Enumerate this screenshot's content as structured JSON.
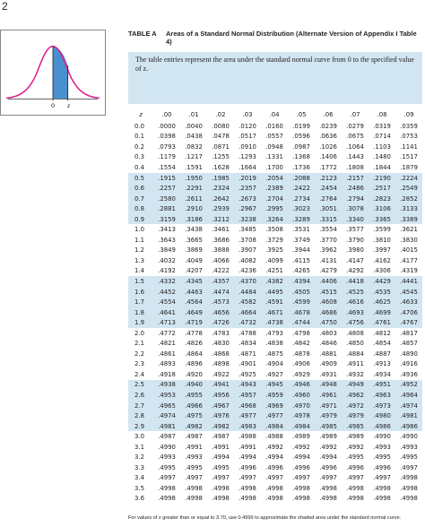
{
  "page_number": "2",
  "figure": {
    "labels": [
      "0",
      "z"
    ]
  },
  "table": {
    "label": "TABLE A",
    "title": "Areas of a Standard Normal Distribution (Alternate Version of Appendix I Table 4)",
    "intro": "The table entries represent the area under the standard normal curve from 0 to the specified value of z.",
    "columns": [
      "z",
      ".00",
      ".01",
      ".02",
      ".03",
      ".04",
      ".05",
      ".06",
      ".07",
      ".08",
      ".09"
    ],
    "rows": [
      [
        "0.0",
        ".0000",
        ".0040",
        ".0080",
        ".0120",
        ".0160",
        ".0199",
        ".0239",
        ".0279",
        ".0319",
        ".0359"
      ],
      [
        "0.1",
        ".0398",
        ".0438",
        ".0478",
        ".0517",
        ".0557",
        ".0596",
        ".0636",
        ".0675",
        ".0714",
        ".0753"
      ],
      [
        "0.2",
        ".0793",
        ".0832",
        ".0871",
        ".0910",
        ".0948",
        ".0987",
        ".1026",
        ".1064",
        ".1103",
        ".1141"
      ],
      [
        "0.3",
        ".1179",
        ".1217",
        ".1255",
        ".1293",
        ".1331",
        ".1368",
        ".1406",
        ".1443",
        ".1480",
        ".1517"
      ],
      [
        "0.4",
        ".1554",
        ".1591",
        ".1628",
        ".1664",
        ".1700",
        ".1736",
        ".1772",
        ".1808",
        ".1844",
        ".1879"
      ],
      [
        "0.5",
        ".1915",
        ".1950",
        ".1985",
        ".2019",
        ".2054",
        ".2088",
        ".2123",
        ".2157",
        ".2190",
        ".2224"
      ],
      [
        "0.6",
        ".2257",
        ".2291",
        ".2324",
        ".2357",
        ".2389",
        ".2422",
        ".2454",
        ".2486",
        ".2517",
        ".2549"
      ],
      [
        "0.7",
        ".2580",
        ".2611",
        ".2642",
        ".2673",
        ".2704",
        ".2734",
        ".2764",
        ".2794",
        ".2823",
        ".2852"
      ],
      [
        "0.8",
        ".2881",
        ".2910",
        ".2939",
        ".2967",
        ".2995",
        ".3023",
        ".3051",
        ".3078",
        ".3106",
        ".3133"
      ],
      [
        "0.9",
        ".3159",
        ".3186",
        ".3212",
        ".3238",
        ".3264",
        ".3289",
        ".3315",
        ".3340",
        ".3365",
        ".3389"
      ],
      [
        "1.0",
        ".3413",
        ".3438",
        ".3461",
        ".3485",
        ".3508",
        ".3531",
        ".3554",
        ".3577",
        ".3599",
        ".3621"
      ],
      [
        "1.1",
        ".3643",
        ".3665",
        ".3686",
        ".3708",
        ".3729",
        ".3749",
        ".3770",
        ".3790",
        ".3810",
        ".3830"
      ],
      [
        "1.2",
        ".3849",
        ".3869",
        ".3888",
        ".3907",
        ".3925",
        ".3944",
        ".3962",
        ".3980",
        ".3997",
        ".4015"
      ],
      [
        "1.3",
        ".4032",
        ".4049",
        ".4066",
        ".4082",
        ".4099",
        ".4115",
        ".4131",
        ".4147",
        ".4162",
        ".4177"
      ],
      [
        "1.4",
        ".4192",
        ".4207",
        ".4222",
        ".4236",
        ".4251",
        ".4265",
        ".4279",
        ".4292",
        ".4306",
        ".4319"
      ],
      [
        "1.5",
        ".4332",
        ".4345",
        ".4357",
        ".4370",
        ".4382",
        ".4394",
        ".4406",
        ".4418",
        ".4429",
        ".4441"
      ],
      [
        "1.6",
        ".4452",
        ".4463",
        ".4474",
        ".4484",
        ".4495",
        ".4505",
        ".4515",
        ".4525",
        ".4535",
        ".4545"
      ],
      [
        "1.7",
        ".4554",
        ".4564",
        ".4573",
        ".4582",
        ".4591",
        ".4599",
        ".4608",
        ".4616",
        ".4625",
        ".4633"
      ],
      [
        "1.8",
        ".4641",
        ".4649",
        ".4656",
        ".4664",
        ".4671",
        ".4678",
        ".4686",
        ".4693",
        ".4699",
        ".4706"
      ],
      [
        "1.9",
        ".4713",
        ".4719",
        ".4726",
        ".4732",
        ".4738",
        ".4744",
        ".4750",
        ".4756",
        ".4761",
        ".4767"
      ],
      [
        "2.0",
        ".4772",
        ".4778",
        ".4783",
        ".4788",
        ".4793",
        ".4798",
        ".4803",
        ".4808",
        ".4812",
        ".4817"
      ],
      [
        "2.1",
        ".4821",
        ".4826",
        ".4830",
        ".4834",
        ".4838",
        ".4842",
        ".4846",
        ".4850",
        ".4854",
        ".4857"
      ],
      [
        "2.2",
        ".4861",
        ".4864",
        ".4868",
        ".4871",
        ".4875",
        ".4878",
        ".4881",
        ".4884",
        ".4887",
        ".4890"
      ],
      [
        "2.3",
        ".4893",
        ".4896",
        ".4898",
        ".4901",
        ".4904",
        ".4906",
        ".4909",
        ".4911",
        ".4913",
        ".4916"
      ],
      [
        "2.4",
        ".4918",
        ".4920",
        ".4922",
        ".4925",
        ".4927",
        ".4929",
        ".4931",
        ".4932",
        ".4934",
        ".4936"
      ],
      [
        "2.5",
        ".4938",
        ".4940",
        ".4941",
        ".4943",
        ".4945",
        ".4946",
        ".4948",
        ".4949",
        ".4951",
        ".4952"
      ],
      [
        "2.6",
        ".4953",
        ".4955",
        ".4956",
        ".4957",
        ".4959",
        ".4960",
        ".4961",
        ".4962",
        ".4963",
        ".4964"
      ],
      [
        "2.7",
        ".4965",
        ".4966",
        ".4967",
        ".4968",
        ".4969",
        ".4970",
        ".4971",
        ".4972",
        ".4973",
        ".4974"
      ],
      [
        "2.8",
        ".4974",
        ".4975",
        ".4976",
        ".4977",
        ".4977",
        ".4978",
        ".4979",
        ".4979",
        ".4980",
        ".4981"
      ],
      [
        "2.9",
        ".4981",
        ".4982",
        ".4982",
        ".4983",
        ".4984",
        ".4984",
        ".4985",
        ".4985",
        ".4986",
        ".4986"
      ],
      [
        "3.0",
        ".4987",
        ".4987",
        ".4987",
        ".4988",
        ".4988",
        ".4989",
        ".4989",
        ".4989",
        ".4990",
        ".4990"
      ],
      [
        "3.1",
        ".4990",
        ".4991",
        ".4991",
        ".4991",
        ".4992",
        ".4992",
        ".4992",
        ".4992",
        ".4993",
        ".4993"
      ],
      [
        "3.2",
        ".4993",
        ".4993",
        ".4994",
        ".4994",
        ".4994",
        ".4994",
        ".4994",
        ".4995",
        ".4995",
        ".4995"
      ],
      [
        "3.3",
        ".4995",
        ".4995",
        ".4995",
        ".4996",
        ".4996",
        ".4996",
        ".4996",
        ".4996",
        ".4996",
        ".4997"
      ],
      [
        "3.4",
        ".4997",
        ".4997",
        ".4997",
        ".4997",
        ".4997",
        ".4997",
        ".4997",
        ".4997",
        ".4997",
        ".4998"
      ],
      [
        "3.5",
        ".4998",
        ".4998",
        ".4998",
        ".4998",
        ".4998",
        ".4998",
        ".4998",
        ".4998",
        ".4998",
        ".4998"
      ],
      [
        "3.6",
        ".4998",
        ".4998",
        ".4998",
        ".4998",
        ".4998",
        ".4998",
        ".4998",
        ".4998",
        ".4998",
        ".4998"
      ]
    ]
  },
  "footnote": "For values of z greater than or equal to 3.70, use 0.4999 to approximate the shaded area under the standard normal curve."
}
